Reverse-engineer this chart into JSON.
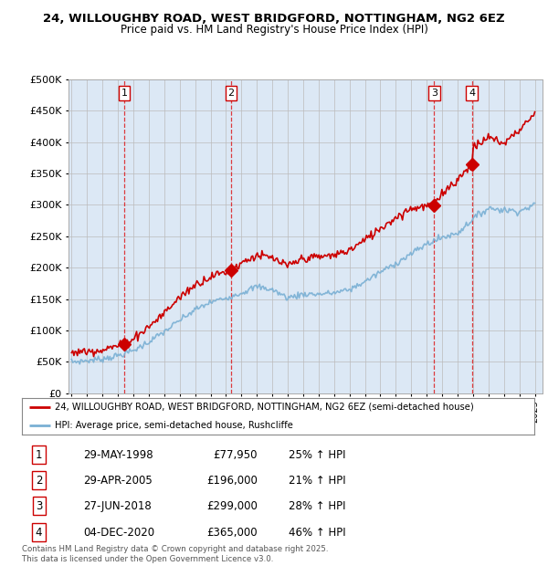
{
  "title_line1": "24, WILLOUGHBY ROAD, WEST BRIDGFORD, NOTTINGHAM, NG2 6EZ",
  "title_line2": "Price paid vs. HM Land Registry's House Price Index (HPI)",
  "background_color": "#ffffff",
  "plot_bg_color": "#dce8f5",
  "grid_color": "#bbbbbb",
  "sale_color": "#cc0000",
  "hpi_color": "#7ab0d4",
  "sale_label": "24, WILLOUGHBY ROAD, WEST BRIDGFORD, NOTTINGHAM, NG2 6EZ (semi-detached house)",
  "hpi_label": "HPI: Average price, semi-detached house, Rushcliffe",
  "footer": "Contains HM Land Registry data © Crown copyright and database right 2025.\nThis data is licensed under the Open Government Licence v3.0.",
  "ylim": [
    0,
    500000
  ],
  "yticks": [
    0,
    50000,
    100000,
    150000,
    200000,
    250000,
    300000,
    350000,
    400000,
    450000,
    500000
  ],
  "sales": [
    {
      "num": 1,
      "date": "29-MAY-1998",
      "price": 77950,
      "pct": "25%",
      "year": 1998.41
    },
    {
      "num": 2,
      "date": "29-APR-2005",
      "price": 196000,
      "pct": "21%",
      "year": 2005.33
    },
    {
      "num": 3,
      "date": "27-JUN-2018",
      "price": 299000,
      "pct": "28%",
      "year": 2018.49
    },
    {
      "num": 4,
      "date": "04-DEC-2020",
      "price": 365000,
      "pct": "46%",
      "year": 2020.92
    }
  ],
  "hpi_key_years": [
    1995,
    1996,
    1997,
    1998,
    1999,
    2000,
    2001,
    2002,
    2003,
    2004,
    2005,
    2006,
    2007,
    2008,
    2009,
    2010,
    2011,
    2012,
    2013,
    2014,
    2015,
    2016,
    2017,
    2018,
    2019,
    2020,
    2021,
    2022,
    2023,
    2024,
    2025
  ],
  "hpi_key_values": [
    50000,
    52000,
    55000,
    60000,
    68000,
    82000,
    98000,
    116000,
    133000,
    145000,
    152000,
    160000,
    170000,
    165000,
    152000,
    158000,
    158000,
    160000,
    165000,
    178000,
    193000,
    207000,
    222000,
    238000,
    248000,
    255000,
    278000,
    295000,
    292000,
    290000,
    300000
  ],
  "sale_key_years": [
    1995,
    1996,
    1997,
    1998.41,
    1999,
    2000,
    2001,
    2002,
    2003,
    2004,
    2005.33,
    2006,
    2007,
    2008,
    2009,
    2010,
    2011,
    2012,
    2013,
    2014,
    2015,
    2016,
    2017,
    2018.49,
    2019,
    2020,
    2020.92,
    2021,
    2022,
    2023,
    2024,
    2025
  ],
  "sale_key_values": [
    65000,
    67000,
    70000,
    77950,
    88000,
    106000,
    128000,
    153000,
    173000,
    186000,
    196000,
    208000,
    220000,
    215000,
    202000,
    215000,
    217000,
    220000,
    228000,
    244000,
    263000,
    280000,
    295000,
    299000,
    320000,
    340000,
    365000,
    390000,
    408000,
    398000,
    420000,
    445000
  ],
  "xmin": 1994.8,
  "xmax": 2025.5,
  "xticks": [
    1995,
    1996,
    1997,
    1998,
    1999,
    2000,
    2001,
    2002,
    2003,
    2004,
    2005,
    2006,
    2007,
    2008,
    2009,
    2010,
    2011,
    2012,
    2013,
    2014,
    2015,
    2016,
    2017,
    2018,
    2019,
    2020,
    2021,
    2022,
    2023,
    2024,
    2025
  ]
}
